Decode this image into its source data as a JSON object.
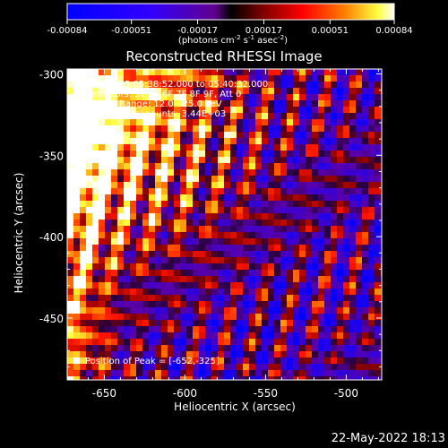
{
  "colorbar": {
    "ticks": [
      "-0.00084",
      "-0.00051",
      "-0.00017",
      "0.00017",
      "0.00051",
      "0.00084"
    ],
    "units_prefix": "(photons cm",
    "units_sup1": "-2",
    "units_mid1": " s",
    "units_sup2": "-1",
    "units_mid2": " asec",
    "units_sup3": "-2",
    "units_suffix": ")"
  },
  "chart_data": {
    "type": "heatmap",
    "title": "Reconstructed RHESSI Image",
    "xlabel": "Heliocentric X (arcsec)",
    "ylabel": "Heliocentric Y (arcsec)",
    "xlim": [
      -673,
      -478
    ],
    "ylim": [
      -488,
      -297
    ],
    "xticks": [
      -650,
      -600,
      -550,
      -500
    ],
    "yticks": [
      -300,
      -350,
      -400,
      -450
    ],
    "xtick_labels": [
      "-650",
      "-600",
      "-550",
      "-500"
    ],
    "ytick_labels": [
      "-300",
      "-350",
      "-400",
      "-450"
    ],
    "color_range": [
      -0.00084,
      0.00084
    ],
    "colormap": "blue-purple-red-yellow-white",
    "peak": [
      -652,
      -325
    ],
    "annotations": {
      "time_range": "5-Aug-2015 05:38:52.000 to 05:40:32.000",
      "detectors": "Detectors: 3F 5F 6F 7F 8F 9F, Att 0",
      "energy": "Energy Range: 12.0 - 25.0 keV",
      "counts": "Clean    Total counts: 3.44E+03",
      "peak_label": "Position of Peak = [-652,-325]"
    }
  },
  "footer": {
    "date": "22-May-2022 18:13"
  }
}
